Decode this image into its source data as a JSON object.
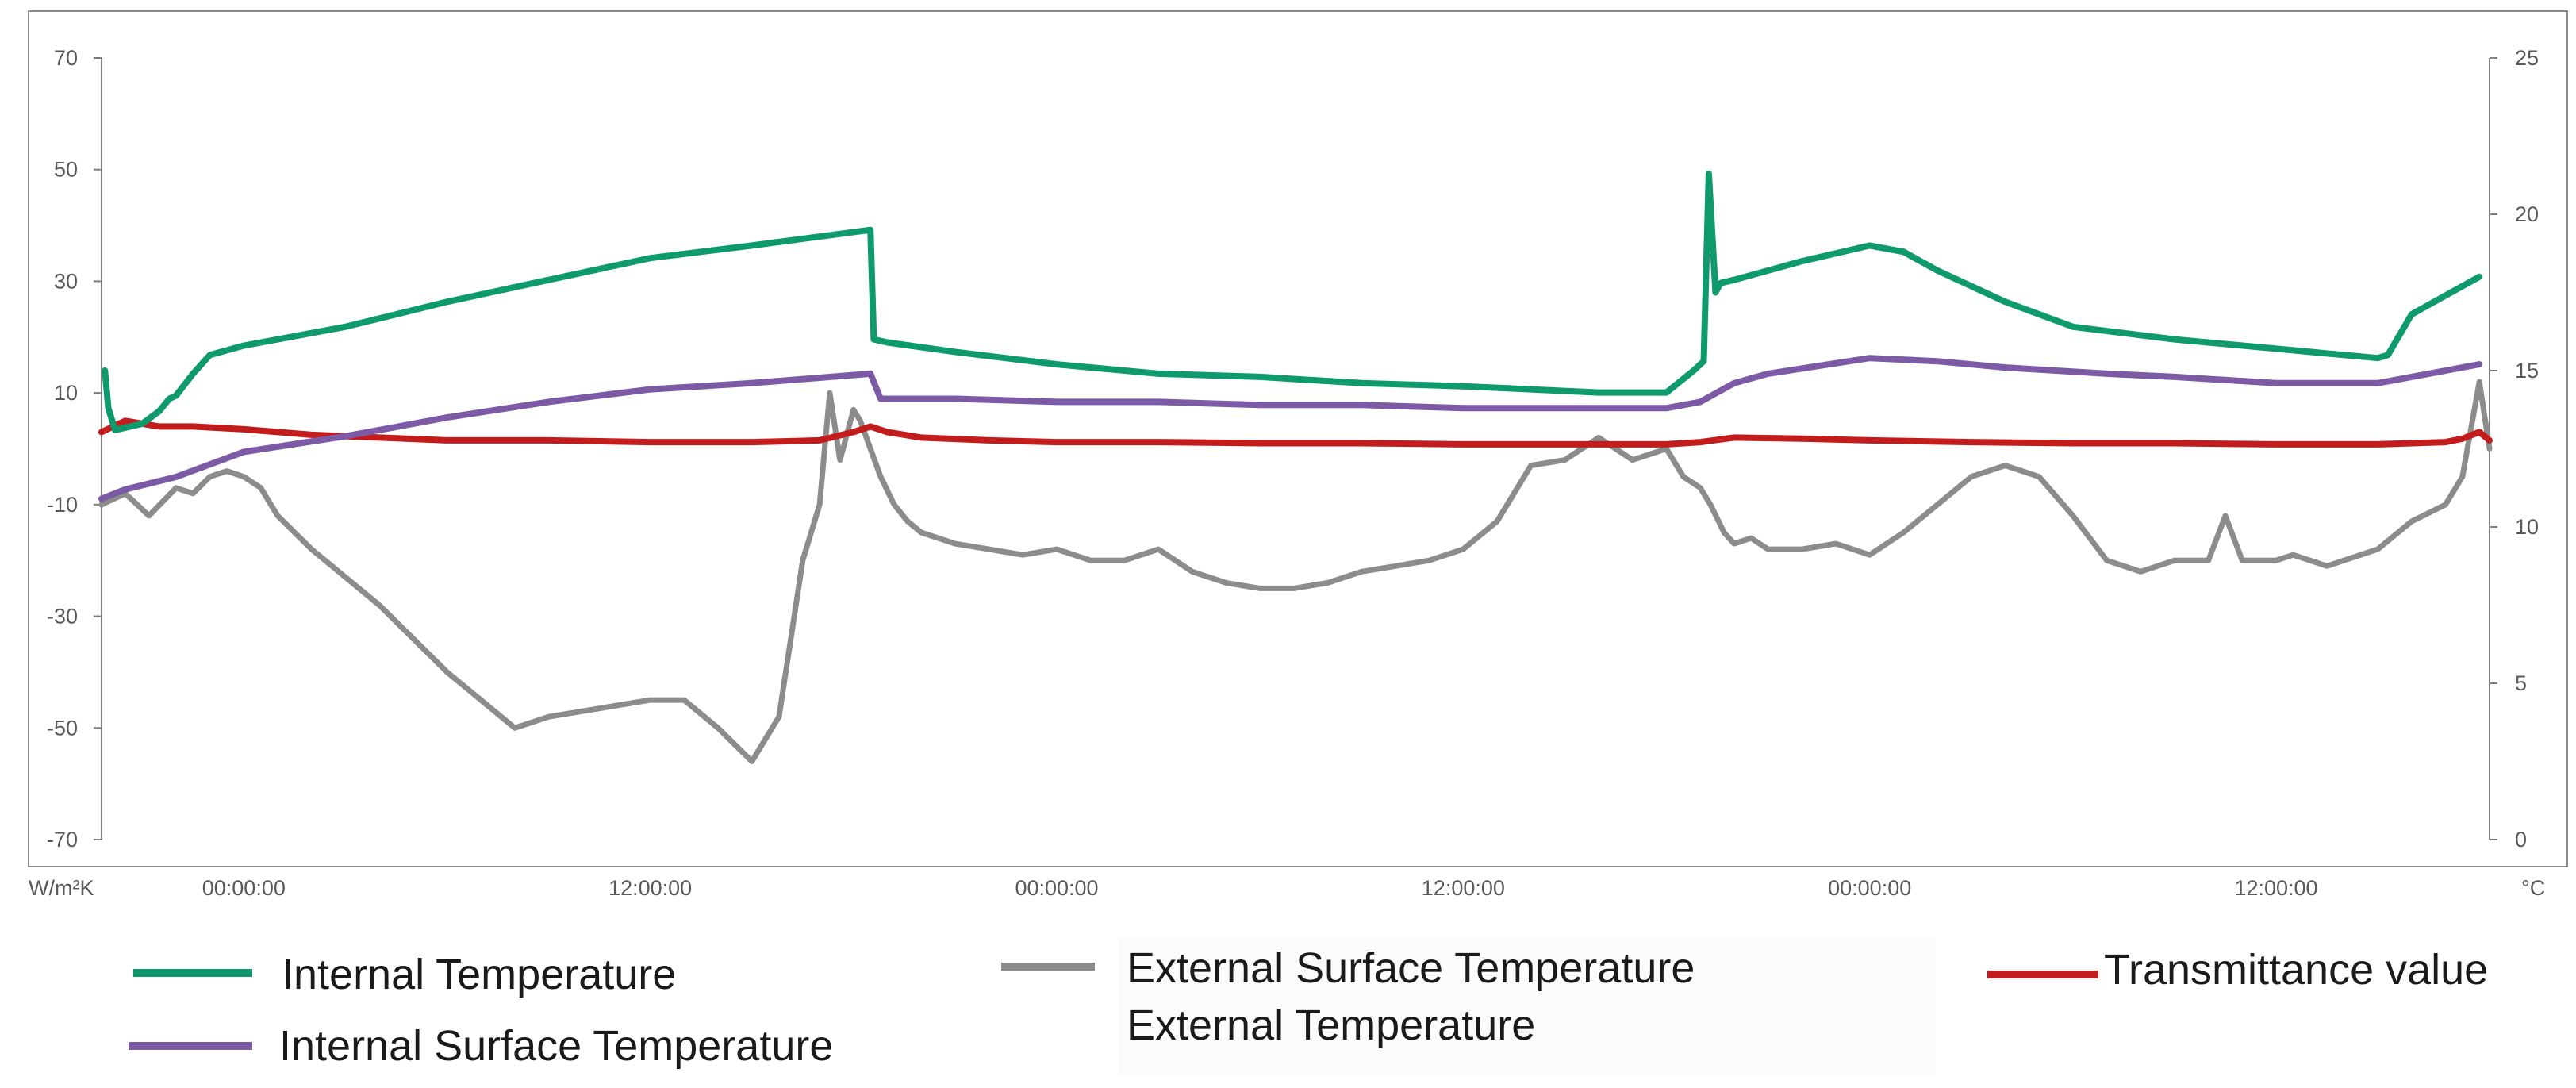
{
  "chart_data": {
    "type": "line",
    "left_axis": {
      "unit_label": "W/m²K",
      "range": [
        -70,
        70
      ],
      "ticks": [
        70,
        50,
        30,
        10,
        -10,
        -30,
        -50,
        -70
      ],
      "tick_labels": [
        "70",
        "50",
        "30",
        "10",
        "-10",
        "-30",
        "-50",
        "-70"
      ]
    },
    "right_axis": {
      "unit_label": "°C",
      "range": [
        0,
        25
      ],
      "ticks": [
        25,
        20,
        15,
        10,
        5,
        0
      ],
      "tick_labels": [
        "25",
        "20",
        "15",
        "10",
        "5",
        "0"
      ]
    },
    "x_axis": {
      "unit": "hours from first 00:00:00",
      "range": [
        -4.2,
        66.3
      ],
      "ticks": [
        0,
        12,
        24,
        36,
        48,
        60
      ],
      "tick_labels": [
        "00:00:00",
        "12:00:00",
        "00:00:00",
        "12:00:00",
        "00:00:00",
        "12:00:00"
      ]
    },
    "grid": false,
    "legend_position": "bottom",
    "series": [
      {
        "name": "Internal Temperature",
        "axis": "right",
        "color": "#0e9a6c",
        "x": [
          -4.1,
          -4.0,
          -3.8,
          -3.0,
          -2.5,
          -2.2,
          -2.0,
          -1.5,
          -1.0,
          0,
          3,
          6,
          9,
          12,
          15,
          18.5,
          18.6,
          19,
          21,
          24,
          27,
          30,
          33,
          36,
          40,
          42,
          42.8,
          43.1,
          43.25,
          43.45,
          43.6,
          44,
          46,
          48,
          49,
          50,
          52,
          54,
          57,
          60,
          62,
          63,
          63.3,
          64,
          65,
          66
        ],
        "y": [
          15.0,
          13.8,
          13.1,
          13.3,
          13.7,
          14.1,
          14.2,
          14.9,
          15.5,
          15.8,
          16.4,
          17.2,
          17.9,
          18.6,
          19.0,
          19.5,
          16.0,
          15.9,
          15.6,
          15.2,
          14.9,
          14.8,
          14.6,
          14.5,
          14.3,
          14.3,
          15.0,
          15.3,
          21.3,
          17.5,
          17.8,
          17.9,
          18.5,
          19.0,
          18.8,
          18.2,
          17.2,
          16.4,
          16.0,
          15.7,
          15.5,
          15.4,
          15.5,
          16.8,
          17.4,
          18.0
        ]
      },
      {
        "name": "Internal Surface Temperature",
        "axis": "right",
        "color": "#7d5aa6",
        "x": [
          -4.2,
          -3.5,
          -2.0,
          0,
          3,
          6,
          9,
          12,
          15,
          18.5,
          18.8,
          21,
          24,
          27,
          30,
          33,
          36,
          39,
          42,
          43,
          44,
          45,
          48,
          50,
          52,
          55,
          57,
          60,
          63,
          64,
          66
        ],
        "y": [
          10.9,
          11.2,
          11.6,
          12.4,
          12.9,
          13.5,
          14.0,
          14.4,
          14.6,
          14.9,
          14.1,
          14.1,
          14.0,
          14.0,
          13.9,
          13.9,
          13.8,
          13.8,
          13.8,
          14.0,
          14.6,
          14.9,
          15.4,
          15.3,
          15.1,
          14.9,
          14.8,
          14.6,
          14.6,
          14.8,
          15.2
        ]
      },
      {
        "name": "External Surface Temperature",
        "axis": "left",
        "color": "#8c8c8a",
        "x": [
          -4.2,
          -3.5,
          -2.8,
          -2.0,
          -1.5,
          -1.0,
          -0.5,
          0,
          0.5,
          1,
          2,
          3,
          4,
          5,
          6,
          7,
          8,
          9,
          10,
          11,
          12,
          13,
          14,
          15,
          15.8,
          16.5,
          17,
          17.3,
          17.6,
          18.0,
          18.2,
          18.5,
          18.8,
          19.2,
          19.6,
          20,
          21,
          22,
          23,
          24,
          25,
          26,
          27,
          28,
          29,
          30,
          31,
          32,
          33,
          34,
          35,
          36,
          37,
          38,
          39,
          40,
          41,
          42,
          42.5,
          43,
          43.3,
          43.7,
          44,
          44.5,
          45,
          46,
          47,
          48,
          49,
          50,
          51,
          52,
          53,
          54,
          55,
          56,
          57,
          58,
          58.5,
          59,
          60,
          60.5,
          61,
          61.5,
          62,
          63,
          64,
          65,
          65.5,
          66,
          66.3
        ],
        "y": [
          -10,
          -8,
          -12,
          -7,
          -8,
          -5,
          -4,
          -5,
          -7,
          -12,
          -18,
          -23,
          -28,
          -34,
          -40,
          -45,
          -50,
          -48,
          -47,
          -46,
          -45,
          -45,
          -50,
          -56,
          -48,
          -20,
          -10,
          10,
          -2,
          7,
          5,
          0,
          -5,
          -10,
          -13,
          -15,
          -17,
          -18,
          -19,
          -18,
          -20,
          -20,
          -18,
          -22,
          -24,
          -25,
          -25,
          -24,
          -22,
          -21,
          -20,
          -18,
          -13,
          -3,
          -2,
          2,
          -2,
          0,
          -5,
          -7,
          -10,
          -15,
          -17,
          -16,
          -18,
          -18,
          -17,
          -19,
          -15,
          -10,
          -5,
          -3,
          -5,
          -12,
          -20,
          -22,
          -20,
          -20,
          -12,
          -20,
          -20,
          -19,
          -20,
          -21,
          -20,
          -18,
          -13,
          -10,
          -5,
          12,
          0
        ]
      },
      {
        "name": "Transmittance value",
        "axis": "left",
        "color": "#c21d1c",
        "x": [
          -4.2,
          -3.5,
          -2.5,
          -1.5,
          0,
          2,
          4,
          6,
          9,
          12,
          15,
          17,
          18,
          18.5,
          19,
          20,
          22,
          24,
          27,
          30,
          33,
          36,
          39,
          42,
          43,
          44,
          46,
          48,
          51,
          54,
          57,
          60,
          63,
          65,
          65.5,
          66,
          66.3
        ],
        "y": [
          3,
          5,
          4,
          4,
          3.5,
          2.5,
          2,
          1.5,
          1.5,
          1.2,
          1.2,
          1.5,
          3,
          4,
          3,
          2,
          1.5,
          1.2,
          1.2,
          1.0,
          1.0,
          0.8,
          0.8,
          0.8,
          1.2,
          2,
          1.8,
          1.5,
          1.2,
          1.0,
          1.0,
          0.8,
          0.8,
          1.2,
          1.8,
          3,
          1.5
        ]
      }
    ],
    "legend": [
      {
        "label": "Internal Temperature",
        "color": "#0e9a6c"
      },
      {
        "label": "External Surface Temperature",
        "color": "#8c8c8a"
      },
      {
        "label": "External Temperature",
        "color": "#8c8c8a"
      },
      {
        "label": "Transmittance value",
        "color": "#c21d1c"
      },
      {
        "label": "Internal Surface Temperature",
        "color": "#7d5aa6"
      }
    ]
  }
}
